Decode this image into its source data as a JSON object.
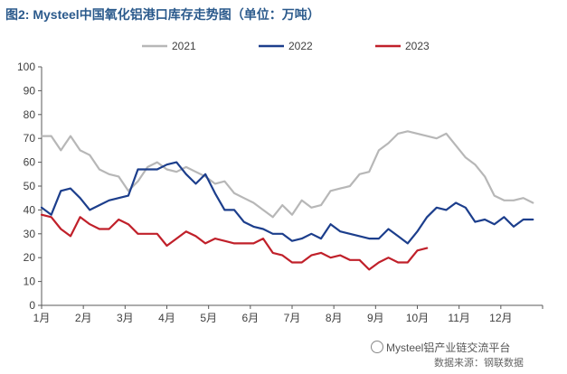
{
  "title": "图2: Mysteel中国氧化铝港口库存走势图（单位：万吨）",
  "watermark": "Mysteel铝产业链交流平台",
  "source": "数据来源：钢联数据",
  "chart_data": {
    "type": "line",
    "title": "图2: Mysteel中国氧化铝港口库存走势图（单位：万吨）",
    "unit": "万吨",
    "xlabel": "",
    "ylabel": "",
    "ylim": [
      0,
      100
    ],
    "yticks": [
      0,
      10,
      20,
      30,
      40,
      50,
      60,
      70,
      80,
      90,
      100
    ],
    "x_range": [
      0,
      52
    ],
    "month_labels": [
      "1月",
      "2月",
      "3月",
      "4月",
      "5月",
      "6月",
      "7月",
      "8月",
      "9月",
      "10月",
      "11月",
      "12月"
    ],
    "grid": false,
    "legend_position": "top",
    "series": [
      {
        "name": "2021",
        "color": "#b7b7b7",
        "x": [
          0,
          1,
          2,
          3,
          4,
          5,
          6,
          7,
          8,
          9,
          10,
          11,
          12,
          13,
          14,
          15,
          16,
          17,
          18,
          19,
          20,
          21,
          22,
          23,
          24,
          25,
          26,
          27,
          28,
          29,
          30,
          31,
          32,
          33,
          34,
          35,
          36,
          37,
          38,
          39,
          40,
          41,
          42,
          43,
          44,
          45,
          46,
          47,
          48,
          49,
          50,
          51
        ],
        "values": [
          71,
          71,
          65,
          71,
          65,
          63,
          57,
          55,
          54,
          48,
          52,
          58,
          60,
          57,
          56,
          58,
          56,
          54,
          51,
          52,
          47,
          45,
          43,
          40,
          37,
          42,
          38,
          44,
          41,
          42,
          48,
          49,
          50,
          55,
          56,
          65,
          68,
          72,
          73,
          72,
          71,
          70,
          72,
          67,
          62,
          59,
          54,
          46,
          44,
          44,
          45,
          43
        ]
      },
      {
        "name": "2022",
        "color": "#1c3e8c",
        "x": [
          0,
          1,
          2,
          3,
          4,
          5,
          6,
          7,
          8,
          9,
          10,
          11,
          12,
          13,
          14,
          15,
          16,
          17,
          18,
          19,
          20,
          21,
          22,
          23,
          24,
          25,
          26,
          27,
          28,
          29,
          30,
          31,
          32,
          33,
          34,
          35,
          36,
          37,
          38,
          39,
          40,
          41,
          42,
          43,
          44,
          45,
          46,
          47,
          48,
          49,
          50,
          51
        ],
        "values": [
          41,
          38,
          48,
          49,
          45,
          40,
          42,
          44,
          45,
          46,
          57,
          57,
          57,
          59,
          60,
          55,
          51,
          55,
          47,
          40,
          40,
          35,
          33,
          32,
          30,
          30,
          27,
          28,
          30,
          28,
          34,
          31,
          30,
          29,
          28,
          28,
          32,
          29,
          26,
          31,
          37,
          41,
          40,
          43,
          41,
          35,
          36,
          34,
          37,
          33,
          36,
          36
        ]
      },
      {
        "name": "2023",
        "color": "#c0202a",
        "x": [
          0,
          1,
          2,
          3,
          4,
          5,
          6,
          7,
          8,
          9,
          10,
          11,
          12,
          13,
          14,
          15,
          16,
          17,
          18,
          19,
          20,
          21,
          22,
          23,
          24,
          25,
          26,
          27,
          28,
          29,
          30,
          31,
          32,
          33,
          34,
          35,
          36,
          37,
          38,
          39,
          40
        ],
        "values": [
          38,
          37,
          32,
          29,
          37,
          34,
          32,
          32,
          36,
          34,
          30,
          30,
          30,
          25,
          28,
          31,
          29,
          26,
          28,
          27,
          26,
          26,
          26,
          28,
          22,
          21,
          18,
          18,
          21,
          22,
          20,
          21,
          19,
          19,
          15,
          18,
          20,
          18,
          18,
          23,
          24
        ]
      }
    ]
  }
}
